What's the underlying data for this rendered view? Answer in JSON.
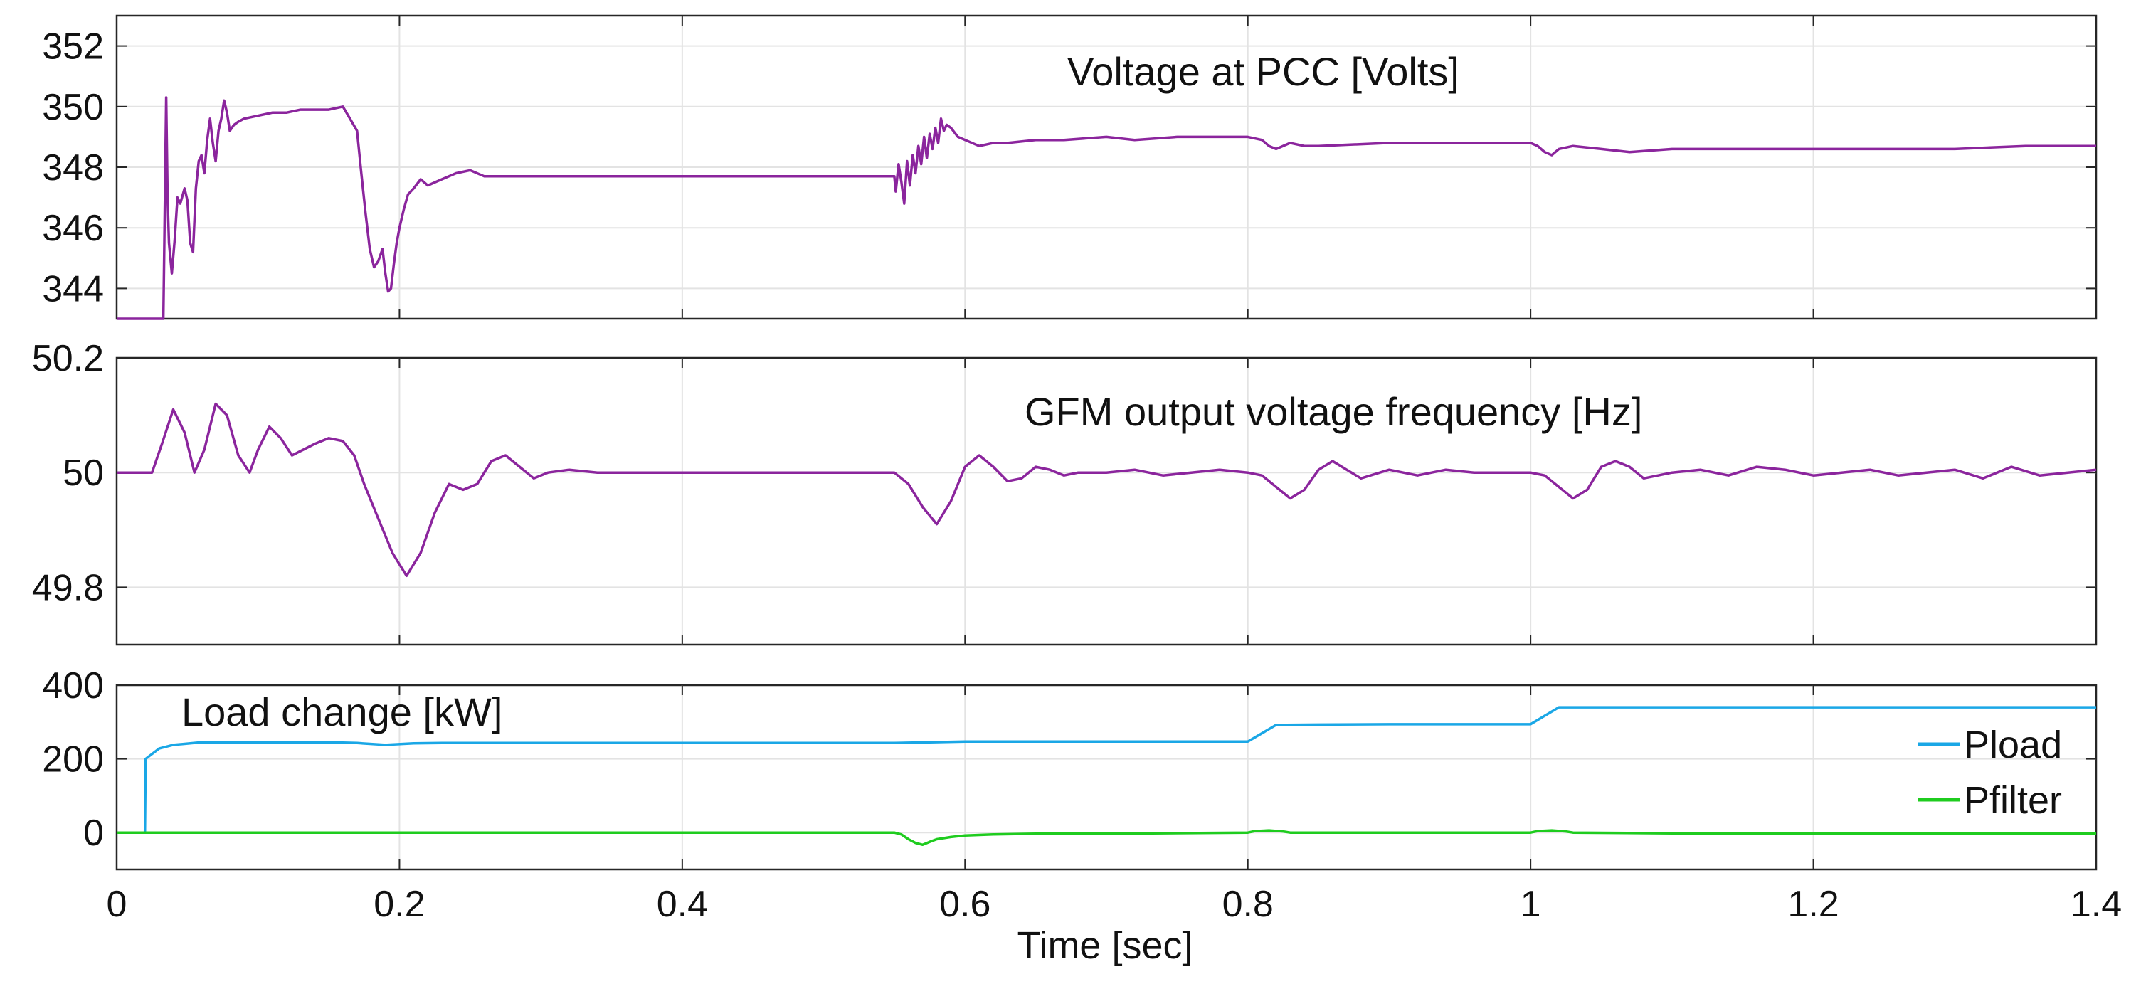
{
  "chart_data": [
    {
      "type": "line",
      "title": "Voltage at PCC [Volts]",
      "xlabel": "",
      "ylabel": "",
      "xlim": [
        0,
        1.4
      ],
      "ylim": [
        343,
        353
      ],
      "xticks": [
        0,
        0.2,
        0.4,
        0.6,
        0.8,
        1,
        1.2,
        1.4
      ],
      "yticks": [
        344,
        346,
        348,
        350,
        352
      ],
      "ytick_labels": [
        "344",
        "346",
        "348",
        "350",
        "352"
      ],
      "grid": true,
      "series": [
        {
          "name": "Voltage at PCC",
          "color": "#8b259d",
          "x": [
            0.0,
            0.033,
            0.035,
            0.036,
            0.037,
            0.039,
            0.041,
            0.043,
            0.045,
            0.048,
            0.05,
            0.052,
            0.054,
            0.056,
            0.058,
            0.06,
            0.062,
            0.064,
            0.066,
            0.068,
            0.07,
            0.072,
            0.074,
            0.076,
            0.078,
            0.08,
            0.083,
            0.086,
            0.09,
            0.1,
            0.11,
            0.12,
            0.13,
            0.14,
            0.15,
            0.16,
            0.165,
            0.17,
            0.173,
            0.176,
            0.179,
            0.182,
            0.185,
            0.188,
            0.19,
            0.192,
            0.194,
            0.196,
            0.198,
            0.2,
            0.203,
            0.206,
            0.21,
            0.215,
            0.22,
            0.23,
            0.24,
            0.25,
            0.26,
            0.27,
            0.28,
            0.3,
            0.32,
            0.34,
            0.4,
            0.5,
            0.55,
            0.551,
            0.553,
            0.555,
            0.557,
            0.559,
            0.561,
            0.563,
            0.565,
            0.567,
            0.569,
            0.571,
            0.573,
            0.575,
            0.577,
            0.579,
            0.581,
            0.583,
            0.585,
            0.587,
            0.59,
            0.595,
            0.6,
            0.61,
            0.62,
            0.63,
            0.65,
            0.67,
            0.7,
            0.72,
            0.75,
            0.78,
            0.8,
            0.81,
            0.815,
            0.82,
            0.83,
            0.84,
            0.85,
            0.9,
            0.95,
            0.99,
            1.0,
            1.005,
            1.01,
            1.015,
            1.02,
            1.03,
            1.05,
            1.07,
            1.1,
            1.15,
            1.2,
            1.25,
            1.3,
            1.35,
            1.4
          ],
          "values": [
            343.0,
            343.0,
            350.3,
            347.0,
            345.5,
            344.5,
            345.6,
            347.0,
            346.8,
            347.3,
            346.9,
            345.5,
            345.2,
            347.3,
            348.2,
            348.4,
            347.8,
            348.9,
            349.6,
            348.8,
            348.2,
            349.2,
            349.6,
            350.2,
            349.8,
            349.2,
            349.4,
            349.5,
            349.6,
            349.7,
            349.8,
            349.8,
            349.9,
            349.9,
            349.9,
            350.0,
            349.6,
            349.2,
            347.8,
            346.5,
            345.3,
            344.7,
            344.9,
            345.3,
            344.5,
            343.9,
            344.0,
            344.8,
            345.5,
            346.0,
            346.6,
            347.1,
            347.3,
            347.6,
            347.4,
            347.6,
            347.8,
            347.9,
            347.7,
            347.7,
            347.7,
            347.7,
            347.7,
            347.7,
            347.7,
            347.7,
            347.7,
            347.2,
            348.1,
            347.5,
            346.8,
            348.2,
            347.4,
            348.4,
            347.8,
            348.7,
            348.1,
            349.0,
            348.3,
            349.1,
            348.6,
            349.3,
            348.8,
            349.6,
            349.2,
            349.4,
            349.3,
            349.0,
            348.9,
            348.7,
            348.8,
            348.8,
            348.9,
            348.9,
            349.0,
            348.9,
            349.0,
            349.0,
            349.0,
            348.9,
            348.7,
            348.6,
            348.8,
            348.7,
            348.7,
            348.8,
            348.8,
            348.8,
            348.8,
            348.7,
            348.5,
            348.4,
            348.6,
            348.7,
            348.6,
            348.5,
            348.6,
            348.6,
            348.6,
            348.6,
            348.6,
            348.7,
            348.7
          ]
        }
      ]
    },
    {
      "type": "line",
      "title": "GFM output voltage frequency [Hz]",
      "xlabel": "",
      "ylabel": "",
      "xlim": [
        0,
        1.4
      ],
      "ylim": [
        49.7,
        50.2
      ],
      "xticks": [
        0,
        0.2,
        0.4,
        0.6,
        0.8,
        1,
        1.2,
        1.4
      ],
      "yticks": [
        49.8,
        50,
        50.2
      ],
      "ytick_labels": [
        "49.8",
        "50",
        "50.2"
      ],
      "grid": true,
      "series": [
        {
          "name": "GFM output voltage frequency",
          "color": "#8b259d",
          "x": [
            0.0,
            0.025,
            0.032,
            0.04,
            0.048,
            0.055,
            0.062,
            0.07,
            0.078,
            0.086,
            0.094,
            0.1,
            0.108,
            0.116,
            0.124,
            0.132,
            0.14,
            0.15,
            0.16,
            0.168,
            0.175,
            0.185,
            0.195,
            0.205,
            0.215,
            0.225,
            0.235,
            0.245,
            0.255,
            0.265,
            0.275,
            0.285,
            0.295,
            0.305,
            0.32,
            0.34,
            0.4,
            0.5,
            0.55,
            0.56,
            0.57,
            0.58,
            0.59,
            0.6,
            0.61,
            0.62,
            0.63,
            0.64,
            0.65,
            0.66,
            0.67,
            0.68,
            0.7,
            0.72,
            0.74,
            0.76,
            0.78,
            0.8,
            0.81,
            0.82,
            0.83,
            0.84,
            0.85,
            0.86,
            0.87,
            0.88,
            0.9,
            0.92,
            0.94,
            0.96,
            0.98,
            1.0,
            1.01,
            1.02,
            1.03,
            1.04,
            1.05,
            1.06,
            1.07,
            1.08,
            1.1,
            1.12,
            1.14,
            1.16,
            1.18,
            1.2,
            1.22,
            1.24,
            1.26,
            1.28,
            1.3,
            1.32,
            1.34,
            1.36,
            1.38,
            1.4
          ],
          "values": [
            50.0,
            50.0,
            50.05,
            50.11,
            50.07,
            50.0,
            50.04,
            50.12,
            50.1,
            50.03,
            50.0,
            50.04,
            50.08,
            50.06,
            50.03,
            50.04,
            50.05,
            50.06,
            50.055,
            50.03,
            49.98,
            49.92,
            49.86,
            49.82,
            49.86,
            49.93,
            49.98,
            49.97,
            49.98,
            50.02,
            50.03,
            50.01,
            49.99,
            50.0,
            50.005,
            50.0,
            50.0,
            50.0,
            50.0,
            49.98,
            49.94,
            49.91,
            49.95,
            50.01,
            50.03,
            50.01,
            49.985,
            49.99,
            50.01,
            50.005,
            49.995,
            50.0,
            50.0,
            50.005,
            49.995,
            50.0,
            50.005,
            50.0,
            49.995,
            49.975,
            49.955,
            49.97,
            50.005,
            50.02,
            50.005,
            49.99,
            50.005,
            49.995,
            50.005,
            50.0,
            50.0,
            50.0,
            49.995,
            49.975,
            49.955,
            49.97,
            50.01,
            50.02,
            50.01,
            49.99,
            50.0,
            50.005,
            49.995,
            50.01,
            50.005,
            49.995,
            50.0,
            50.005,
            49.995,
            50.0,
            50.005,
            49.99,
            50.01,
            49.995,
            50.0,
            50.005
          ]
        }
      ]
    },
    {
      "type": "line",
      "title": "Load change [kW]",
      "xlabel": "Time [sec]",
      "ylabel": "",
      "xlim": [
        0,
        1.4
      ],
      "ylim": [
        -100,
        400
      ],
      "xticks": [
        0,
        0.2,
        0.4,
        0.6,
        0.8,
        1,
        1.2,
        1.4
      ],
      "xtick_labels": [
        "0",
        "0.2",
        "0.4",
        "0.6",
        "0.8",
        "1",
        "1.2",
        "1.4"
      ],
      "yticks": [
        0,
        200,
        400
      ],
      "ytick_labels": [
        "0",
        "200",
        "400"
      ],
      "grid": true,
      "legend": {
        "position": "bottom-right",
        "entries": [
          "Pload",
          "Pfilter"
        ]
      },
      "series": [
        {
          "name": "Pload",
          "color": "#1aa7e6",
          "x": [
            0.0,
            0.02,
            0.0205,
            0.03,
            0.04,
            0.06,
            0.1,
            0.15,
            0.17,
            0.19,
            0.21,
            0.23,
            0.3,
            0.4,
            0.55,
            0.6,
            0.7,
            0.8,
            0.82,
            0.85,
            0.9,
            1.0,
            1.02,
            1.05,
            1.1,
            1.2,
            1.3,
            1.4
          ],
          "values": [
            0,
            0,
            200,
            228,
            238,
            245,
            245,
            245,
            243,
            238,
            242,
            243,
            243,
            243,
            243,
            247,
            247,
            247,
            292,
            293,
            294,
            294,
            340,
            340,
            340,
            340,
            340,
            340
          ]
        },
        {
          "name": "Pfilter",
          "color": "#1fcc1f",
          "x": [
            0.0,
            0.55,
            0.555,
            0.56,
            0.565,
            0.57,
            0.575,
            0.58,
            0.59,
            0.6,
            0.62,
            0.65,
            0.7,
            0.8,
            0.805,
            0.815,
            0.825,
            0.83,
            0.9,
            1.0,
            1.005,
            1.015,
            1.025,
            1.03,
            1.1,
            1.2,
            1.3,
            1.4
          ],
          "values": [
            0,
            0,
            -5,
            -18,
            -28,
            -33,
            -25,
            -18,
            -12,
            -8,
            -5,
            -3,
            -3,
            0,
            4,
            6,
            3,
            0,
            0,
            0,
            4,
            6,
            3,
            0,
            -2,
            -3,
            -3,
            -3
          ]
        }
      ]
    }
  ]
}
